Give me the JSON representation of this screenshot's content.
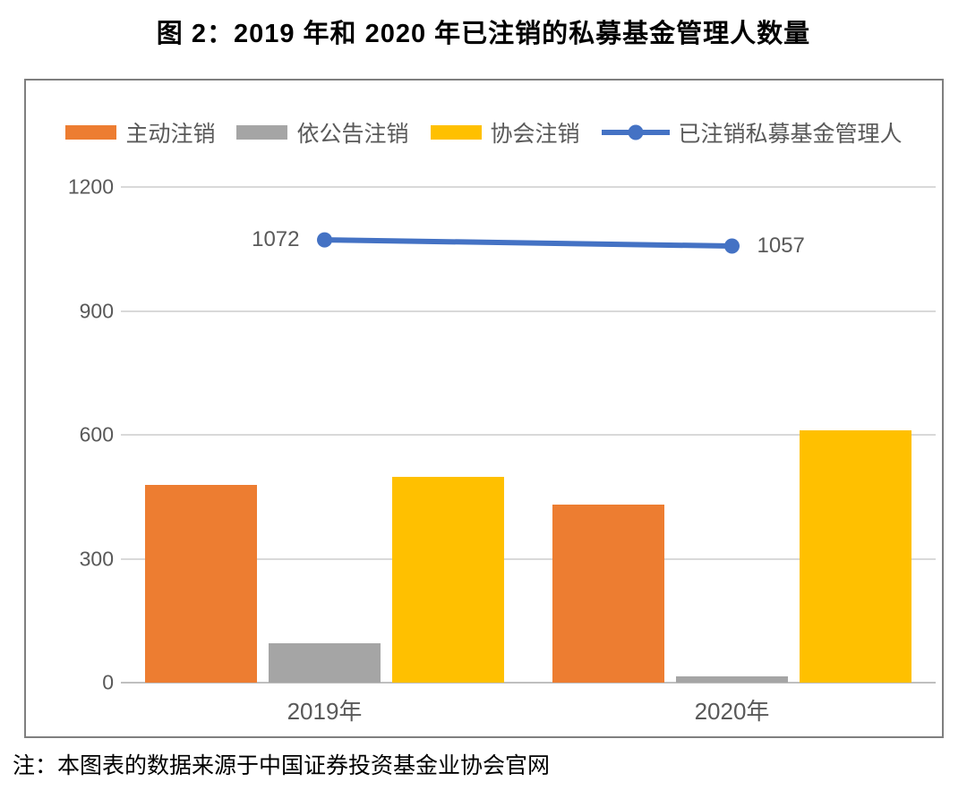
{
  "title": "图 2：2019 年和 2020 年已注销的私募基金管理人数量",
  "note": "注：本图表的数据来源于中国证券投资基金业协会官网",
  "colors": {
    "bar_orange": "#ED7D31",
    "bar_gray": "#A5A5A5",
    "bar_yellow": "#FFC000",
    "line_blue": "#4472C4",
    "gridline": "#D9D9D9",
    "axis_line": "#BFBFBF",
    "tick_text": "#595959",
    "frame_border": "#7F7F7F"
  },
  "legend": {
    "items": [
      {
        "key": "active-deregistration",
        "type": "bar",
        "label": "主动注销",
        "color": "#ED7D31"
      },
      {
        "key": "announcement-deregistration",
        "type": "bar",
        "label": "依公告注销",
        "color": "#A5A5A5"
      },
      {
        "key": "association-deregistration",
        "type": "bar",
        "label": "协会注销",
        "color": "#FFC000"
      },
      {
        "key": "deregistered-managers",
        "type": "line",
        "label": "已注销私募基金管理人",
        "color": "#4472C4"
      }
    ]
  },
  "chart_data": {
    "type": "combo-bar-line",
    "title": "图 2：2019 年和 2020 年已注销的私募基金管理人数量",
    "categories": [
      "2019年",
      "2020年"
    ],
    "category_keys": [
      "2019",
      "2020"
    ],
    "series": [
      {
        "key": "active-deregistration",
        "name": "主动注销",
        "type": "bar",
        "color": "#ED7D31",
        "values": [
          479,
          431
        ]
      },
      {
        "key": "announcement-deregistration",
        "name": "依公告注销",
        "type": "bar",
        "color": "#A5A5A5",
        "values": [
          95,
          15
        ]
      },
      {
        "key": "association-deregistration",
        "name": "协会注销",
        "type": "bar",
        "color": "#FFC000",
        "values": [
          498,
          611
        ]
      },
      {
        "key": "deregistered-managers",
        "name": "已注销私募基金管理人",
        "type": "line",
        "color": "#4472C4",
        "values": [
          1072,
          1057
        ],
        "data_labels": [
          "1072",
          "1057"
        ]
      }
    ],
    "xlabel": "",
    "ylabel": "",
    "ylim": [
      0,
      1200
    ],
    "yticks": [
      0,
      300,
      600,
      900,
      1200
    ],
    "grid": true,
    "legend_position": "top",
    "note": "注：本图表的数据来源于中国证券投资基金业协会官网"
  }
}
